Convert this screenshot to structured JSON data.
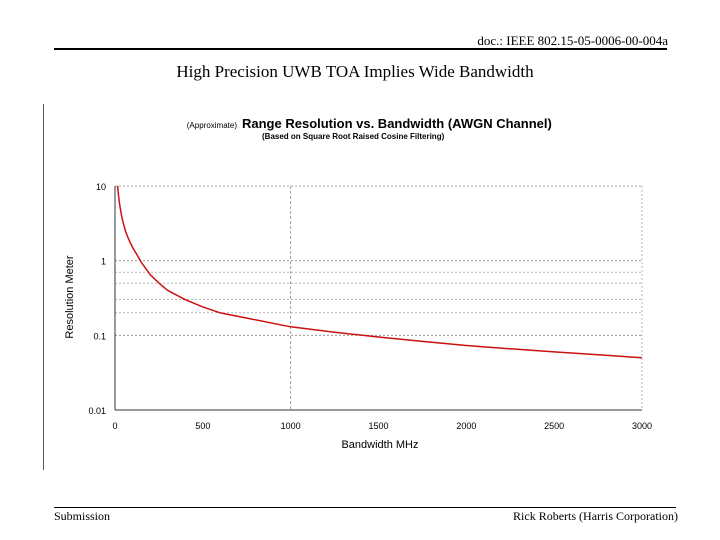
{
  "header": {
    "doc_id": "doc.: IEEE 802.15-05-0006-00-004a"
  },
  "slide": {
    "title": "High Precision UWB TOA Implies Wide Bandwidth"
  },
  "footer": {
    "left": "Submission",
    "right": "Rick Roberts (Harris Corporation)"
  },
  "colors": {
    "curve": "#cc1111",
    "grid": "#8a8a8a"
  },
  "chart_data": {
    "type": "line",
    "title_prefix": "(Approximate)",
    "title": "Range Resolution vs. Bandwidth (AWGN Channel)",
    "subtitle": "(Based on Square Root Raised Cosine Filtering)",
    "xlabel": "Bandwidth MHz",
    "ylabel": "Resolution Meter",
    "xlim": [
      0,
      3000
    ],
    "ylim": [
      0.01,
      10
    ],
    "yscale": "log",
    "x_ticks": [
      0,
      500,
      1000,
      1500,
      2000,
      2500,
      3000
    ],
    "x_tick_labels": [
      "0",
      "500",
      "1000",
      "1500",
      "2000",
      "2500",
      "3000"
    ],
    "y_ticks": [
      10,
      1,
      0.1,
      0.01
    ],
    "y_tick_labels": [
      "10",
      "1",
      "0.1",
      "0.01"
    ],
    "y_minor_grid": [
      0.7,
      0.5,
      0.3,
      0.2
    ],
    "x_dashed_grid": [
      1000
    ],
    "series": [
      {
        "name": "Resolution",
        "x": [
          15,
          20,
          25,
          30,
          40,
          50,
          60,
          75,
          100,
          125,
          150,
          200,
          250,
          300,
          400,
          500,
          600,
          750,
          1000,
          1250,
          1500,
          1750,
          2000,
          2250,
          2500,
          2750,
          3000
        ],
        "y": [
          10,
          7.5,
          6.0,
          5.0,
          3.75,
          3.0,
          2.5,
          2.0,
          1.5,
          1.2,
          0.95,
          0.65,
          0.5,
          0.4,
          0.3,
          0.24,
          0.2,
          0.17,
          0.13,
          0.11,
          0.095,
          0.083,
          0.073,
          0.066,
          0.06,
          0.055,
          0.05
        ]
      }
    ]
  }
}
